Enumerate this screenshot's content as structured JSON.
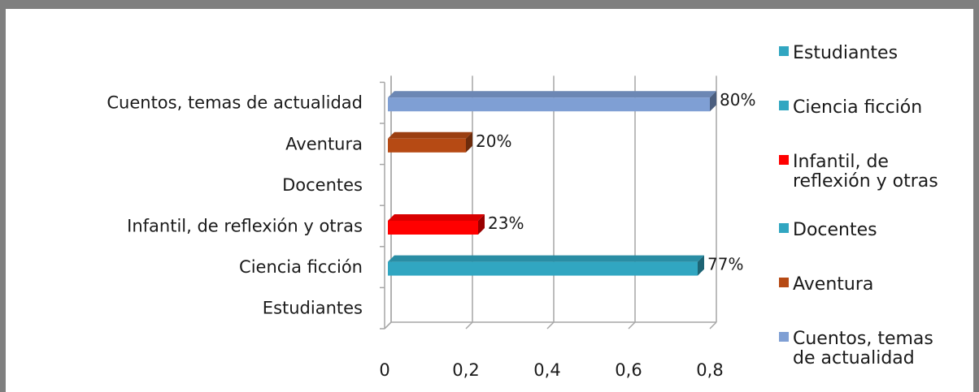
{
  "chart_data": {
    "type": "bar",
    "orientation": "horizontal",
    "categories": [
      "Estudiantes",
      "Ciencia ficción",
      "Infantil, de reflexión y otras",
      "Docentes",
      "Aventura",
      "Cuentos, temas de actualidad"
    ],
    "values": [
      null,
      0.77,
      0.23,
      null,
      0.2,
      0.8
    ],
    "value_labels": [
      "",
      "77%",
      "23%",
      "",
      "20%",
      "80%"
    ],
    "colors": [
      "#31a6c1",
      "#31a6c1",
      "#ff0000",
      "#31a6c1",
      "#b64a14",
      "#7f9fd4"
    ],
    "xlim": [
      0,
      0.8
    ],
    "xticks": [
      "0",
      "0,2",
      "0,4",
      "0,6",
      "0,8"
    ],
    "grid": true,
    "legend_position": "right",
    "legend": [
      {
        "label_lines": [
          "Estudiantes"
        ],
        "color": "#31a6c1"
      },
      {
        "label_lines": [
          "Ciencia ficción"
        ],
        "color": "#31a6c1"
      },
      {
        "label_lines": [
          "Infantil, de",
          "reflexión y otras"
        ],
        "color": "#ff0000"
      },
      {
        "label_lines": [
          "Docentes"
        ],
        "color": "#31a6c1"
      },
      {
        "label_lines": [
          "Aventura"
        ],
        "color": "#b64a14"
      },
      {
        "label_lines": [
          "Cuentos, temas",
          "de actualidad"
        ],
        "color": "#7f9fd4"
      }
    ],
    "title": "",
    "xlabel": "",
    "ylabel": ""
  }
}
